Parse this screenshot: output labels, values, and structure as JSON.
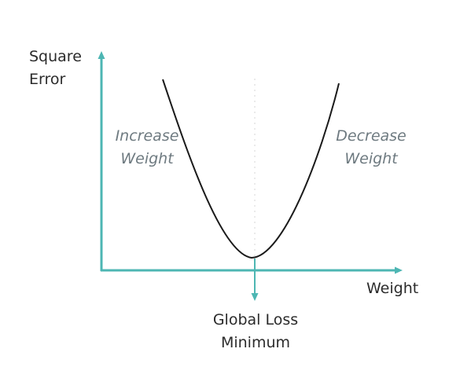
{
  "colors": {
    "axis": "#4db6b3",
    "curve": "#1a1a1a",
    "guide": "#e4e4e4",
    "text": "#2b2b2b",
    "hint": "#6e7a80"
  },
  "labels": {
    "y_axis": {
      "line1": "Square",
      "line2": "Error"
    },
    "x_axis": "Weight",
    "left_hint": {
      "line1": "Increase",
      "line2": "Weight"
    },
    "right_hint": {
      "line1": "Decrease",
      "line2": "Weight"
    },
    "minimum": {
      "line1": "Global Loss",
      "line2": "Minimum"
    }
  }
}
